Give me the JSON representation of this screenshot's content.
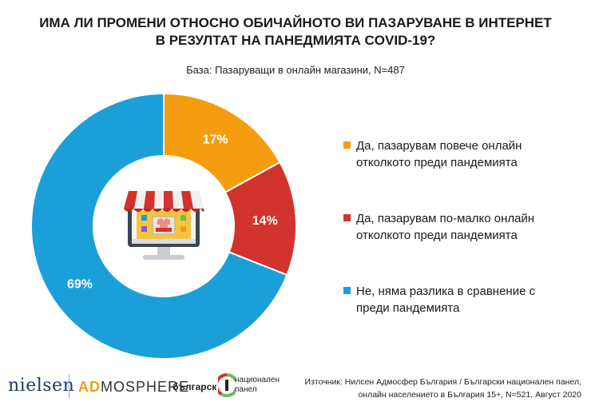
{
  "title_line1": "ИМА ЛИ ПРОМЕНИ ОТНОСНО ОБИЧАЙНОТО ВИ ПАЗАРУВАНЕ В ИНТЕРНЕТ",
  "title_line2": "В РЕЗУЛТАТ НА ПАНЕДМИЯТА COVID-19?",
  "subtitle": "База: Пазаруващи в онлайн магазини, N=487",
  "chart_data": {
    "type": "pie",
    "donut": true,
    "categories": [
      "Да, пазарувам повече онлайн отколкото преди пандемията",
      "Да, пазарувам по-малко онлайн отколкото преди пандемията",
      "Не, няма разлика в сравнение с преди пандемията"
    ],
    "values": [
      17,
      14,
      69
    ],
    "labels": [
      "17%",
      "14%",
      "69%"
    ],
    "colors": [
      "#f59d0f",
      "#d2332d",
      "#1b9fd8"
    ],
    "legend_position": "right"
  },
  "legend": [
    {
      "line1": "Да, пазарувам повече онлайн",
      "line2": "отколкото преди пандемията",
      "color": "#f59d0f"
    },
    {
      "line1": "Да, пазарувам по-малко онлайн",
      "line2": "отколкото преди пандемията",
      "color": "#d2332d"
    },
    {
      "line1": "Не, няма разлика в сравнение с",
      "line2": "преди пандемията",
      "color": "#1b9fd8"
    }
  ],
  "logos": {
    "nielsen": "nielsen",
    "admosphere_ad": "AD",
    "admosphere_rest": "MOSPHERE",
    "bnp_word": "българск",
    "bnp_line1": "национален",
    "bnp_line2": "панел"
  },
  "source_line1": "Източник: Нилсен Адмосфер България / Български национален панел,",
  "source_line2": "онлайн населението в България 15+, N=521, Август 2020"
}
